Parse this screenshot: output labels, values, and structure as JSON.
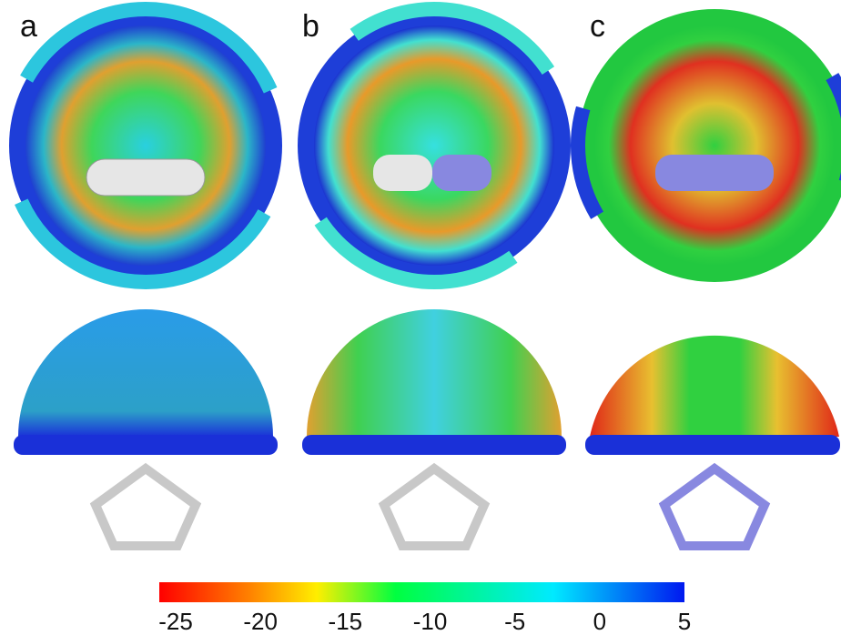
{
  "panels": [
    {
      "label": "a"
    },
    {
      "label": "b"
    },
    {
      "label": "c"
    }
  ],
  "colorbar": {
    "range": [
      -25,
      5
    ],
    "ticks": [
      -25,
      -20,
      -15,
      -10,
      -5,
      0,
      5
    ]
  }
}
